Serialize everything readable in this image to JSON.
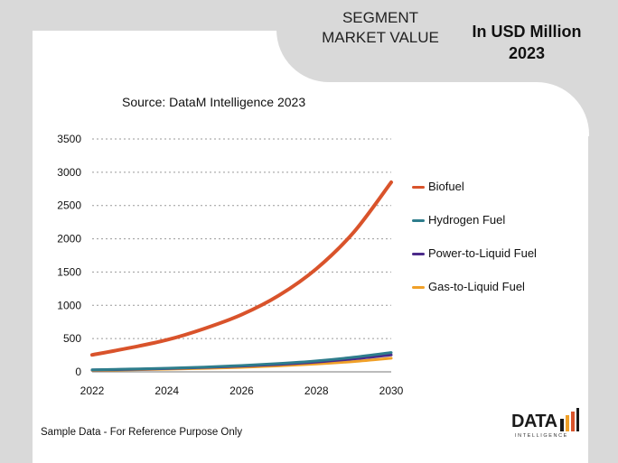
{
  "header": {
    "segment_title": "SEGMENT MARKET VALUE",
    "unit_title": "In USD Million 2023"
  },
  "source": "Source: DataM Intelligence  2023",
  "footer": "Sample Data - For Reference Purpose Only",
  "logo": {
    "text": "DATA",
    "subtext": "INTELLIGENCE"
  },
  "chart_data": {
    "type": "line",
    "title": "",
    "xlabel": "",
    "ylabel": "",
    "x_ticks": [
      "2022",
      "2024",
      "2026",
      "2028",
      "2030"
    ],
    "y_ticks": [
      "0",
      "500",
      "1000",
      "1500",
      "2000",
      "2500",
      "3000",
      "3500"
    ],
    "x": [
      2022,
      2023,
      2024,
      2025,
      2026,
      2027,
      2028,
      2029,
      2030
    ],
    "ylim": [
      0,
      3500
    ],
    "grid": true,
    "legend_position": "right",
    "series": [
      {
        "name": "Biofuel",
        "color": "#d9532b",
        "values": [
          255,
          360,
          480,
          650,
          860,
          1150,
          1550,
          2100,
          2850
        ]
      },
      {
        "name": "Hydrogen Fuel",
        "color": "#2e7d8c",
        "values": [
          30,
          42,
          55,
          72,
          95,
          125,
          165,
          220,
          290
        ]
      },
      {
        "name": "Power-to-Liquid Fuel",
        "color": "#4b2a8a",
        "values": [
          28,
          38,
          50,
          66,
          86,
          112,
          148,
          195,
          255
        ]
      },
      {
        "name": "Gas-to-Liquid Fuel",
        "color": "#f0a028",
        "values": [
          22,
          30,
          40,
          52,
          68,
          90,
          118,
          155,
          205
        ]
      }
    ]
  }
}
